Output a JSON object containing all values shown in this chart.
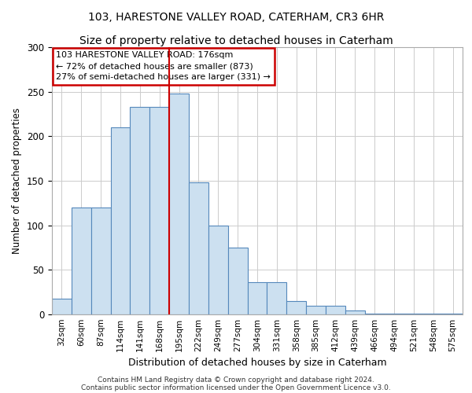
{
  "title1": "103, HARESTONE VALLEY ROAD, CATERHAM, CR3 6HR",
  "title2": "Size of property relative to detached houses in Caterham",
  "xlabel": "Distribution of detached houses by size in Caterham",
  "ylabel": "Number of detached properties",
  "footer1": "Contains HM Land Registry data © Crown copyright and database right 2024.",
  "footer2": "Contains public sector information licensed under the Open Government Licence v3.0.",
  "categories": [
    "32sqm",
    "60sqm",
    "87sqm",
    "114sqm",
    "141sqm",
    "168sqm",
    "195sqm",
    "222sqm",
    "249sqm",
    "277sqm",
    "304sqm",
    "331sqm",
    "358sqm",
    "385sqm",
    "412sqm",
    "439sqm",
    "466sqm",
    "494sqm",
    "521sqm",
    "548sqm",
    "575sqm"
  ],
  "bar_heights": [
    18,
    120,
    120,
    210,
    233,
    233,
    248,
    148,
    100,
    75,
    36,
    36,
    15,
    10,
    10,
    4,
    1,
    1,
    1,
    1,
    1
  ],
  "bar_color": "#cce0f0",
  "bar_edge_color": "#5588bb",
  "vline_color": "#cc0000",
  "vline_xindex": 6,
  "annotation_text": "103 HARESTONE VALLEY ROAD: 176sqm\n← 72% of detached houses are smaller (873)\n27% of semi-detached houses are larger (331) →",
  "annotation_box_color": "#ffffff",
  "annotation_box_edge_color": "#cc0000",
  "ylim": [
    0,
    300
  ],
  "yticks": [
    0,
    50,
    100,
    150,
    200,
    250,
    300
  ],
  "grid_color": "#cccccc",
  "plot_bg_color": "#ffffff",
  "fig_bg_color": "#ffffff",
  "title1_fontsize": 10,
  "title2_fontsize": 10
}
